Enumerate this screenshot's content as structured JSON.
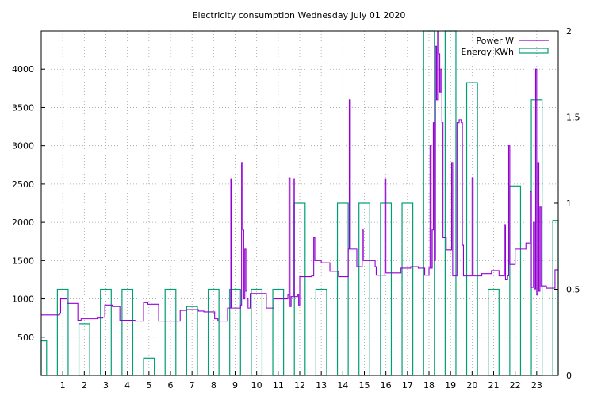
{
  "chart_data": {
    "type": "line",
    "title": "Electricity consumption Wednesday July 01 2020",
    "x_ticks": [
      "1",
      "2",
      "3",
      "4",
      "5",
      "6",
      "7",
      "8",
      "9",
      "10",
      "11",
      "12",
      "13",
      "14",
      "15",
      "16",
      "17",
      "18",
      "19",
      "20",
      "21",
      "22",
      "23"
    ],
    "x_range": [
      0,
      24
    ],
    "y_left": {
      "range": [
        0,
        4500
      ],
      "ticks": [
        "500",
        "1000",
        "1500",
        "2000",
        "2500",
        "3000",
        "3500",
        "4000"
      ]
    },
    "y_right": {
      "range": [
        0,
        2
      ],
      "ticks": [
        "0",
        "0.5",
        "1",
        "1.5",
        "2"
      ]
    },
    "grid": true,
    "legend_position": "top-right",
    "colors": {
      "power": "#9400d3",
      "energy": "#009e73"
    },
    "series": [
      {
        "name": "Power W",
        "axis": "left",
        "style": "steps",
        "points": [
          [
            0,
            790
          ],
          [
            0.7,
            790
          ],
          [
            0.85,
            810
          ],
          [
            0.9,
            1000
          ],
          [
            1.2,
            940
          ],
          [
            1.65,
            940
          ],
          [
            1.7,
            720
          ],
          [
            1.85,
            740
          ],
          [
            2.5,
            740
          ],
          [
            2.6,
            750
          ],
          [
            2.85,
            760
          ],
          [
            2.95,
            920
          ],
          [
            3.3,
            900
          ],
          [
            3.6,
            900
          ],
          [
            3.65,
            720
          ],
          [
            4.3,
            720
          ],
          [
            4.35,
            710
          ],
          [
            4.7,
            710
          ],
          [
            4.75,
            950
          ],
          [
            4.95,
            930
          ],
          [
            5.4,
            930
          ],
          [
            5.45,
            710
          ],
          [
            5.9,
            710
          ],
          [
            6.35,
            710
          ],
          [
            6.45,
            850
          ],
          [
            6.65,
            850
          ],
          [
            6.75,
            860
          ],
          [
            7.3,
            840
          ],
          [
            7.55,
            830
          ],
          [
            7.95,
            830
          ],
          [
            8.05,
            740
          ],
          [
            8.2,
            710
          ],
          [
            8.6,
            710
          ],
          [
            8.65,
            880
          ],
          [
            8.8,
            2570
          ],
          [
            8.82,
            880
          ],
          [
            9.2,
            880
          ],
          [
            9.25,
            920
          ],
          [
            9.3,
            2780
          ],
          [
            9.35,
            1900
          ],
          [
            9.4,
            1000
          ],
          [
            9.45,
            1650
          ],
          [
            9.5,
            1100
          ],
          [
            9.55,
            1000
          ],
          [
            9.6,
            880
          ],
          [
            9.7,
            1070
          ],
          [
            10.4,
            1070
          ],
          [
            10.45,
            880
          ],
          [
            10.8,
            1000
          ],
          [
            11.4,
            1000
          ],
          [
            11.45,
            1050
          ],
          [
            11.5,
            2580
          ],
          [
            11.55,
            900
          ],
          [
            11.6,
            1030
          ],
          [
            11.7,
            2570
          ],
          [
            11.75,
            1030
          ],
          [
            11.9,
            1050
          ],
          [
            11.95,
            920
          ],
          [
            12.0,
            1290
          ],
          [
            12.5,
            1290
          ],
          [
            12.55,
            1300
          ],
          [
            12.65,
            1800
          ],
          [
            12.7,
            1500
          ],
          [
            12.9,
            1500
          ],
          [
            13.0,
            1470
          ],
          [
            13.35,
            1470
          ],
          [
            13.4,
            1360
          ],
          [
            13.75,
            1360
          ],
          [
            13.8,
            1290
          ],
          [
            14.2,
            1290
          ],
          [
            14.25,
            1650
          ],
          [
            14.3,
            3600
          ],
          [
            14.35,
            1650
          ],
          [
            14.6,
            1650
          ],
          [
            14.65,
            1420
          ],
          [
            14.85,
            1420
          ],
          [
            14.9,
            1900
          ],
          [
            14.95,
            1500
          ],
          [
            15.5,
            1420
          ],
          [
            15.55,
            1310
          ],
          [
            15.9,
            1310
          ],
          [
            15.95,
            2570
          ],
          [
            16.0,
            1340
          ],
          [
            16.65,
            1340
          ],
          [
            16.7,
            1400
          ],
          [
            17.15,
            1420
          ],
          [
            17.5,
            1400
          ],
          [
            17.75,
            1400
          ],
          [
            17.8,
            1310
          ],
          [
            18.0,
            1400
          ],
          [
            18.05,
            3000
          ],
          [
            18.1,
            1400
          ],
          [
            18.15,
            1900
          ],
          [
            18.2,
            3300
          ],
          [
            18.25,
            1500
          ],
          [
            18.3,
            4300
          ],
          [
            18.35,
            3600
          ],
          [
            18.4,
            4500
          ],
          [
            18.45,
            4200
          ],
          [
            18.5,
            3700
          ],
          [
            18.55,
            4000
          ],
          [
            18.6,
            3300
          ],
          [
            18.65,
            1800
          ],
          [
            18.8,
            1640
          ],
          [
            19.0,
            1640
          ],
          [
            19.05,
            2780
          ],
          [
            19.1,
            1300
          ],
          [
            19.2,
            1300
          ],
          [
            19.3,
            3300
          ],
          [
            19.4,
            3340
          ],
          [
            19.5,
            3300
          ],
          [
            19.55,
            1700
          ],
          [
            19.6,
            1300
          ],
          [
            19.95,
            1300
          ],
          [
            20.0,
            2580
          ],
          [
            20.05,
            1300
          ],
          [
            20.4,
            1300
          ],
          [
            20.45,
            1330
          ],
          [
            20.9,
            1370
          ],
          [
            21.2,
            1370
          ],
          [
            21.25,
            1300
          ],
          [
            21.4,
            1300
          ],
          [
            21.5,
            1970
          ],
          [
            21.55,
            1250
          ],
          [
            21.65,
            1300
          ],
          [
            21.7,
            3000
          ],
          [
            21.75,
            1450
          ],
          [
            21.9,
            1450
          ],
          [
            22.0,
            1650
          ],
          [
            22.45,
            1650
          ],
          [
            22.5,
            1730
          ],
          [
            22.65,
            1730
          ],
          [
            22.7,
            2400
          ],
          [
            22.75,
            1150
          ],
          [
            22.8,
            1150
          ],
          [
            22.85,
            2000
          ],
          [
            22.9,
            1130
          ],
          [
            22.95,
            4000
          ],
          [
            23.0,
            1050
          ],
          [
            23.05,
            2780
          ],
          [
            23.1,
            1100
          ],
          [
            23.15,
            2200
          ],
          [
            23.2,
            1170
          ],
          [
            23.4,
            1170
          ],
          [
            23.45,
            1140
          ],
          [
            23.8,
            1140
          ],
          [
            23.85,
            1380
          ],
          [
            24.0,
            1360
          ]
        ]
      },
      {
        "name": "Energy KWh",
        "axis": "right",
        "style": "boxes",
        "values": [
          0.2,
          0.5,
          0.3,
          0.5,
          0.5,
          0.1,
          0.5,
          0.4,
          0.5,
          0.5,
          0.5,
          0.5,
          1.0,
          0.5,
          1.0,
          1.0,
          1.0,
          1.0,
          2.0,
          2.0,
          1.7,
          0.5,
          1.1,
          1.6,
          0.9
        ]
      }
    ]
  }
}
